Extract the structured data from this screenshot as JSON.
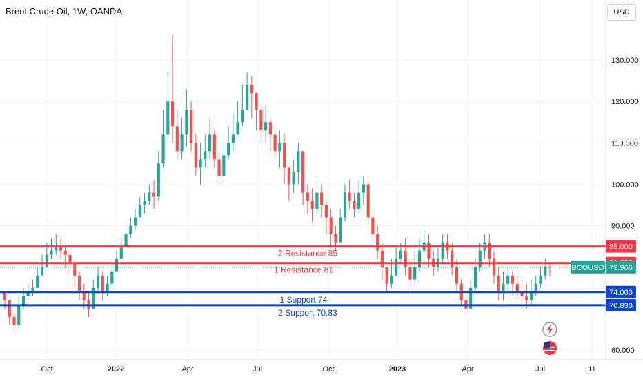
{
  "header": {
    "title": "Brent Crude Oil, 1W, OANDA",
    "currency": "USD"
  },
  "colors": {
    "up": "#26a69a",
    "down": "#ef5350",
    "resistance": "#f23645",
    "support": "#0d47c9",
    "grid": "#f0f3fa",
    "price_tag": "#26a69a"
  },
  "icons": [
    "lightning-icon",
    "us-flag-icon"
  ],
  "chart_data": {
    "type": "candlestick",
    "symbol_label": "BCOUSD",
    "last_price": "79.966",
    "ylim": [
      58,
      138
    ],
    "y_ticks": [
      "60.000",
      "90.000",
      "100.000",
      "110.000",
      "120.000",
      "130.000"
    ],
    "x_ticks": [
      "Oct",
      "2022",
      "Apr",
      "Jul",
      "Oct",
      "2023",
      "Apr",
      "Jul",
      "11"
    ],
    "levels": [
      {
        "label": "2 Resistance 85",
        "value": 85,
        "tag": "85.000",
        "kind": "resistance"
      },
      {
        "label": "1 Resistance  81",
        "value": 81,
        "tag": "81.000",
        "kind": "resistance"
      },
      {
        "label": "1 Support  74",
        "value": 74,
        "tag": "74.000",
        "kind": "support"
      },
      {
        "label": "2 Support  70,83",
        "value": 70.83,
        "tag": "70.830",
        "kind": "support"
      }
    ],
    "closes": [
      72,
      68,
      66,
      71,
      73,
      74,
      75,
      78,
      80,
      83,
      84,
      85,
      84,
      83,
      81,
      78,
      74,
      72,
      70,
      75,
      78,
      74,
      76,
      79,
      82,
      85,
      88,
      90,
      92,
      95,
      96,
      98,
      97,
      105,
      112,
      120,
      114,
      108,
      112,
      118,
      110,
      104,
      106,
      108,
      112,
      106,
      102,
      107,
      110,
      112,
      115,
      118,
      124,
      122,
      118,
      113,
      115,
      112,
      108,
      110,
      104,
      100,
      103,
      108,
      98,
      96,
      94,
      98,
      95,
      92,
      88,
      86,
      92,
      98,
      96,
      94,
      98,
      100,
      92,
      88,
      84,
      80,
      76,
      78,
      82,
      84,
      80,
      77,
      80,
      84,
      86,
      82,
      80,
      82,
      86,
      84,
      80,
      76,
      72,
      70,
      75,
      80,
      84,
      86,
      82,
      78,
      74,
      76,
      78,
      76,
      74,
      73,
      72,
      74,
      76,
      78,
      80,
      79.966
    ],
    "highs": [
      74,
      72,
      69,
      73,
      75,
      76,
      77,
      80,
      83,
      86,
      87,
      88,
      87,
      85,
      84,
      82,
      79,
      76,
      74,
      77,
      80,
      79,
      78,
      81,
      84,
      87,
      90,
      92,
      94,
      97,
      98,
      100,
      101,
      108,
      118,
      127,
      136,
      118,
      116,
      123,
      120,
      112,
      110,
      112,
      116,
      113,
      108,
      110,
      114,
      117,
      120,
      124,
      127,
      126,
      122,
      119,
      119,
      116,
      113,
      113,
      112,
      104,
      106,
      110,
      107,
      100,
      99,
      101,
      100,
      96,
      94,
      90,
      94,
      100,
      101,
      98,
      101,
      102,
      101,
      94,
      90,
      86,
      80,
      82,
      85,
      86,
      87,
      82,
      84,
      87,
      89,
      88,
      84,
      85,
      88,
      88,
      86,
      82,
      77,
      73,
      77,
      82,
      86,
      88,
      88,
      84,
      80,
      79,
      80,
      79,
      78,
      77,
      76,
      77,
      78,
      80,
      82,
      81
    ],
    "lows": [
      70,
      66,
      64,
      65,
      70,
      72,
      73,
      75,
      78,
      81,
      82,
      83,
      82,
      80,
      78,
      75,
      72,
      70,
      68,
      70,
      74,
      72,
      73,
      75,
      79,
      82,
      85,
      87,
      89,
      92,
      93,
      95,
      94,
      96,
      104,
      110,
      110,
      106,
      106,
      109,
      108,
      102,
      100,
      104,
      106,
      104,
      100,
      101,
      106,
      108,
      112,
      114,
      118,
      116,
      113,
      110,
      110,
      108,
      106,
      104,
      100,
      96,
      98,
      100,
      95,
      93,
      91,
      93,
      92,
      88,
      85,
      84,
      86,
      91,
      94,
      92,
      93,
      95,
      90,
      86,
      82,
      77,
      74,
      75,
      78,
      81,
      78,
      75,
      76,
      79,
      83,
      80,
      78,
      79,
      81,
      82,
      78,
      74,
      71,
      69,
      70,
      74,
      79,
      82,
      80,
      76,
      72,
      72,
      74,
      73,
      72,
      71,
      70,
      71,
      73,
      75,
      77,
      78
    ]
  }
}
